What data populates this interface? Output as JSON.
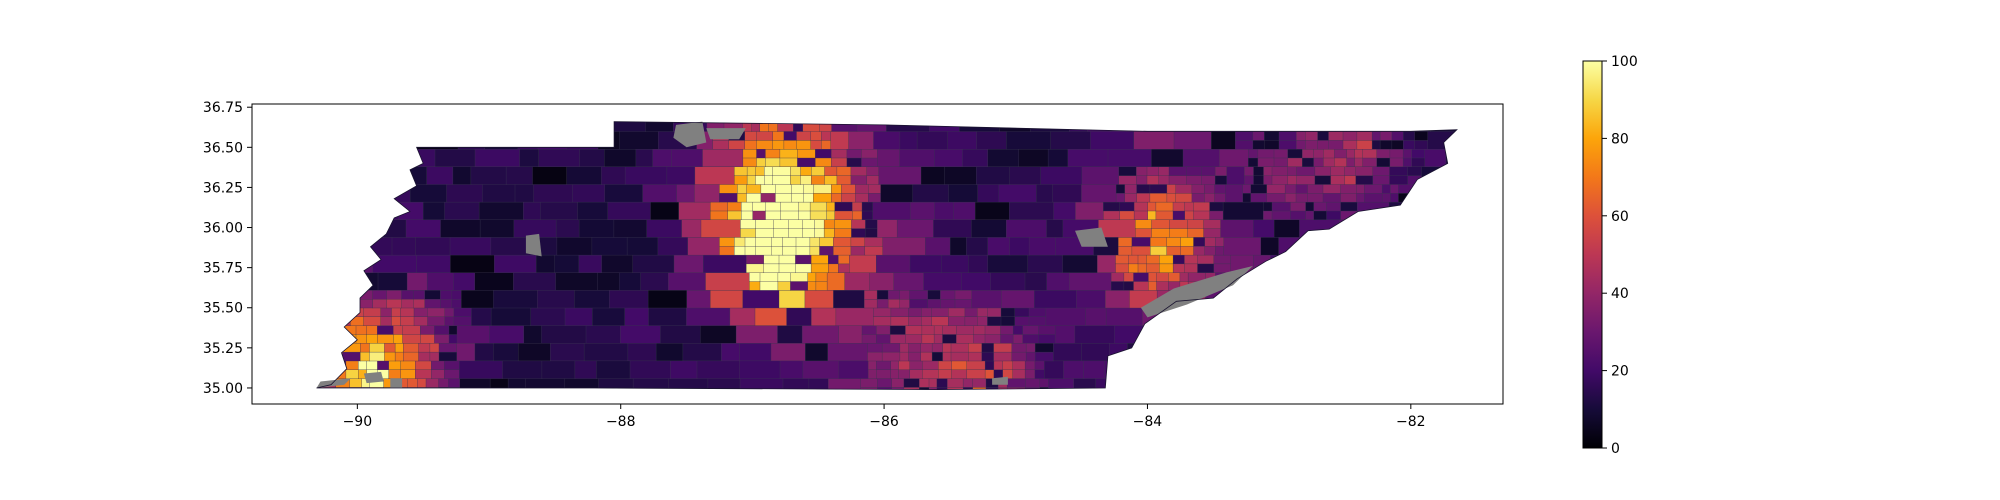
{
  "map": {
    "region": "Tennessee census tracts",
    "x_ticks": [
      {
        "value": -90,
        "label": "−90"
      },
      {
        "value": -88,
        "label": "−88"
      },
      {
        "value": -86,
        "label": "−86"
      },
      {
        "value": -84,
        "label": "−84"
      },
      {
        "value": -82,
        "label": "−82"
      }
    ],
    "y_ticks": [
      {
        "value": 35.0,
        "label": "35.00"
      },
      {
        "value": 35.25,
        "label": "35.25"
      },
      {
        "value": 35.5,
        "label": "35.50"
      },
      {
        "value": 35.75,
        "label": "35.75"
      },
      {
        "value": 36.0,
        "label": "36.00"
      },
      {
        "value": 36.25,
        "label": "36.25"
      },
      {
        "value": 36.5,
        "label": "36.50"
      },
      {
        "value": 36.75,
        "label": "36.75"
      }
    ],
    "xlim": [
      -90.8,
      -81.3
    ],
    "ylim": [
      34.9,
      36.77
    ],
    "missing_color": "#808080",
    "colormap": "inferno"
  },
  "colorbar": {
    "range": [
      0,
      100
    ],
    "ticks": [
      {
        "value": 0,
        "label": "0"
      },
      {
        "value": 20,
        "label": "20"
      },
      {
        "value": 40,
        "label": "40"
      },
      {
        "value": 60,
        "label": "60"
      },
      {
        "value": 80,
        "label": "80"
      },
      {
        "value": 100,
        "label": "100"
      }
    ]
  }
}
